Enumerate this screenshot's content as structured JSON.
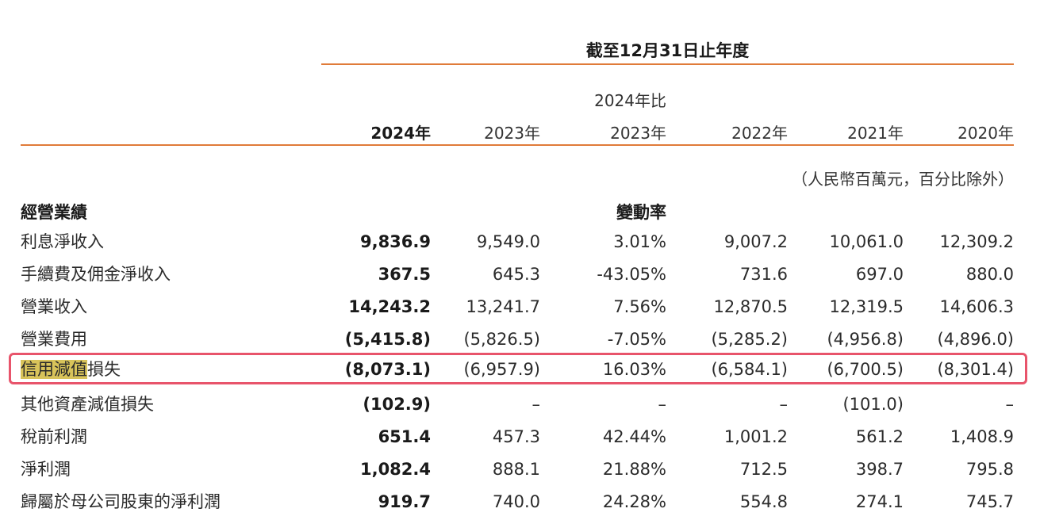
{
  "header": {
    "period_title": "截至12月31日止年度",
    "change_col_top": "2024年比",
    "years": [
      "2024年",
      "2023年",
      "2023年",
      "2022年",
      "2021年",
      "2020年"
    ],
    "unit_note": "（人民幣百萬元，百分比除外）",
    "section_title": "經營業績",
    "change_rate_label": "變動率"
  },
  "rows": [
    {
      "label": "利息淨收入",
      "values": [
        "9,836.9",
        "9,549.0",
        "3.01%",
        "9,007.2",
        "10,061.0",
        "12,309.2"
      ]
    },
    {
      "label": "手續費及佣金淨收入",
      "values": [
        "367.5",
        "645.3",
        "-43.05%",
        "731.6",
        "697.0",
        "880.0"
      ]
    },
    {
      "label": "營業收入",
      "values": [
        "14,243.2",
        "13,241.7",
        "7.56%",
        "12,870.5",
        "12,319.5",
        "14,606.3"
      ]
    },
    {
      "label": "營業費用",
      "values": [
        "(5,415.8)",
        "(5,826.5)",
        "-7.05%",
        "(5,285.2)",
        "(4,956.8)",
        "(4,896.0)"
      ]
    },
    {
      "label_highlighted": "信用減值",
      "label_rest": "損失",
      "values": [
        "(8,073.1)",
        "(6,957.9)",
        "16.03%",
        "(6,584.1)",
        "(6,700.5)",
        "(8,301.4)"
      ]
    },
    {
      "label": "其他資產減值損失",
      "values": [
        "(102.9)",
        "–",
        "–",
        "–",
        "(101.0)",
        "–"
      ]
    },
    {
      "label": "稅前利潤",
      "values": [
        "651.4",
        "457.3",
        "42.44%",
        "1,001.2",
        "561.2",
        "1,408.9"
      ]
    },
    {
      "label": "淨利潤",
      "values": [
        "1,082.4",
        "888.1",
        "21.88%",
        "712.5",
        "398.7",
        "795.8"
      ]
    },
    {
      "label": "歸屬於母公司股東的淨利潤",
      "values": [
        "919.7",
        "740.0",
        "24.28%",
        "554.8",
        "274.1",
        "745.7"
      ]
    }
  ],
  "colors": {
    "rule": "#e07b39",
    "highlight_text_bg": "#d8c35a",
    "highlight_border": "#e8546b"
  }
}
